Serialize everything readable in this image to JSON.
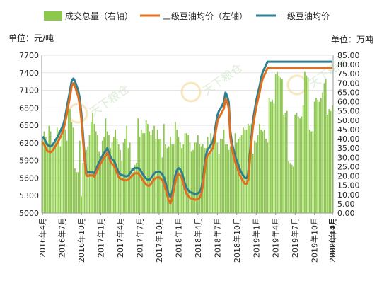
{
  "chart_data": {
    "type": "bar+line",
    "legend": {
      "position": "top",
      "items": [
        {
          "label": "成交总量（右轴）",
          "kind": "bar",
          "color": "#8cc84b"
        },
        {
          "label": "三级豆油均价（左轴）",
          "kind": "line",
          "color": "#e07020"
        },
        {
          "label": "一级豆油均价",
          "kind": "line",
          "color": "#2f7f8f"
        }
      ]
    },
    "left_axis": {
      "unit_label": "单位：元/吨",
      "min": 5000,
      "max": 7700,
      "step": 300,
      "ticks": [
        "5000",
        "5300",
        "5600",
        "5900",
        "6200",
        "6500",
        "6800",
        "7100",
        "7400",
        "7700"
      ]
    },
    "right_axis": {
      "unit_label": "单位：万吨",
      "min": 0,
      "max": 85,
      "step": 5,
      "ticks": [
        "0.00",
        "5.00",
        "10.00",
        "15.00",
        "20.00",
        "25.00",
        "30.00",
        "35.00",
        "40.00",
        "45.00",
        "50.00",
        "55.00",
        "60.00",
        "65.00",
        "70.00",
        "75.00",
        "80.00",
        "85.00"
      ]
    },
    "x_tick_labels": [
      "2016年4月",
      "2016年7月",
      "2016年10月",
      "2017年1月",
      "2017年4月",
      "2017年7月",
      "2017年10月",
      "2018年1月",
      "2018年4月",
      "2018年7月",
      "2018年10月",
      "2019年1月",
      "2019年4月",
      "2019年7月",
      "2019年10月",
      "2020年1月",
      "2020年4月",
      "2020年7月",
      "2020年10月"
    ],
    "weeks_per_month": 4,
    "volume_wan_ton": [
      40,
      44,
      41,
      36,
      47,
      44,
      37,
      37,
      39,
      46,
      44,
      36,
      47,
      45,
      45,
      39,
      60,
      56,
      49,
      46,
      24,
      22,
      22,
      39,
      9,
      27,
      35,
      34,
      36,
      42,
      49,
      54,
      48,
      44,
      42,
      33,
      30,
      39,
      41,
      51,
      44,
      42,
      35,
      38,
      41,
      45,
      40,
      37,
      34,
      28,
      38,
      40,
      47,
      35,
      38,
      24,
      22,
      26,
      27,
      51,
      41,
      45,
      43,
      43,
      50,
      48,
      44,
      42,
      45,
      47,
      40,
      45,
      40,
      40,
      30,
      48,
      37,
      35,
      36,
      41,
      37,
      37,
      49,
      45,
      41,
      38,
      35,
      37,
      43,
      43,
      42,
      38,
      33,
      34,
      38,
      38,
      42,
      37,
      36,
      37,
      35,
      35,
      41,
      32,
      43,
      38,
      38,
      43,
      38,
      32,
      40,
      40,
      45,
      37,
      37,
      34,
      36,
      39,
      35,
      43,
      38,
      40,
      41,
      42,
      46,
      45,
      45,
      48,
      47,
      48,
      32,
      39,
      38,
      42,
      48,
      45,
      44,
      45,
      40,
      38,
      62,
      60,
      61,
      59,
      75,
      76,
      74,
      73,
      72,
      53,
      54,
      55,
      28,
      27,
      26,
      25,
      53,
      54,
      52,
      51,
      52,
      58,
      76,
      74,
      73,
      45,
      44,
      44,
      60,
      62,
      61,
      60,
      62,
      65,
      70,
      72,
      53,
      56,
      55,
      58
    ],
    "grade3_price_yuan_ton": [
      6210,
      6170,
      6120,
      6060,
      6050,
      6040,
      6060,
      6100,
      6150,
      6190,
      6240,
      6300,
      6360,
      6430,
      6550,
      6700,
      6850,
      7000,
      7170,
      7220,
      7170,
      7080,
      7000,
      6850,
      6600,
      6250,
      5900,
      5660,
      5630,
      5650,
      5640,
      5650,
      5620,
      5680,
      5740,
      5800,
      5850,
      5900,
      5950,
      5980,
      6030,
      5960,
      5880,
      5840,
      5820,
      5760,
      5680,
      5620,
      5590,
      5580,
      5570,
      5560,
      5560,
      5570,
      5600,
      5630,
      5660,
      5680,
      5680,
      5680,
      5650,
      5610,
      5560,
      5520,
      5490,
      5470,
      5470,
      5500,
      5540,
      5580,
      5600,
      5610,
      5610,
      5590,
      5560,
      5500,
      5410,
      5300,
      5210,
      5170,
      5240,
      5380,
      5530,
      5630,
      5670,
      5650,
      5600,
      5500,
      5400,
      5330,
      5290,
      5260,
      5250,
      5240,
      5230,
      5230,
      5240,
      5260,
      5320,
      5450,
      5700,
      5900,
      5990,
      6020,
      6060,
      6100,
      6200,
      6400,
      6560,
      6640,
      6680,
      6730,
      6790,
      6950,
      6910,
      6800,
      6300,
      6100,
      5980,
      5870,
      5800,
      5720,
      5640,
      5590,
      5540,
      5500,
      5500,
      5560,
      5900,
      6200,
      6480,
      6650,
      6810,
      6940,
      7050,
      7200,
      7300,
      7360,
      7420,
      7480,
      7480,
      7480,
      7480,
      7480,
      7480,
      7480,
      7480,
      7480,
      7480,
      7480,
      7480,
      7480,
      7480,
      7480,
      7480,
      7480,
      7480,
      7480,
      7480,
      7480,
      7480,
      7480,
      7480,
      7480,
      7480,
      7480,
      7480,
      7480,
      7480,
      7480,
      7480,
      7480,
      7480,
      7480,
      7480,
      7480,
      7480,
      7480,
      7480,
      7480
    ],
    "grade1_price_yuan_ton": [
      6310,
      6270,
      6220,
      6170,
      6150,
      6140,
      6160,
      6200,
      6250,
      6290,
      6340,
      6400,
      6460,
      6530,
      6650,
      6800,
      6950,
      7100,
      7260,
      7300,
      7260,
      7180,
      7100,
      6960,
      6700,
      6350,
      5980,
      5720,
      5690,
      5700,
      5690,
      5700,
      5680,
      5740,
      5810,
      5870,
      5930,
      5980,
      6030,
      6060,
      6110,
      6030,
      5960,
      5920,
      5900,
      5840,
      5760,
      5700,
      5660,
      5650,
      5640,
      5630,
      5630,
      5640,
      5680,
      5720,
      5750,
      5770,
      5770,
      5770,
      5750,
      5710,
      5660,
      5620,
      5590,
      5570,
      5570,
      5600,
      5640,
      5680,
      5700,
      5710,
      5710,
      5690,
      5660,
      5610,
      5520,
      5410,
      5320,
      5280,
      5350,
      5490,
      5640,
      5730,
      5770,
      5750,
      5700,
      5600,
      5500,
      5430,
      5390,
      5360,
      5350,
      5340,
      5330,
      5330,
      5340,
      5360,
      5420,
      5550,
      5800,
      6000,
      6090,
      6120,
      6170,
      6210,
      6310,
      6510,
      6670,
      6750,
      6790,
      6840,
      6900,
      7060,
      7010,
      6900,
      6400,
      6200,
      6080,
      5970,
      5900,
      5820,
      5740,
      5690,
      5640,
      5600,
      5600,
      5660,
      6000,
      6300,
      6580,
      6760,
      6920,
      7050,
      7160,
      7310,
      7410,
      7470,
      7530,
      7590,
      7590,
      7590,
      7590,
      7590,
      7590,
      7590,
      7590,
      7590,
      7590,
      7590,
      7590,
      7590,
      7590,
      7590,
      7590,
      7590,
      7590,
      7590,
      7590,
      7590,
      7590,
      7590,
      7590,
      7590,
      7590,
      7590,
      7590,
      7590,
      7590,
      7590,
      7590,
      7590,
      7590,
      7590,
      7590,
      7590,
      7590,
      7590,
      7590,
      7590
    ],
    "watermark": "天下粮仓"
  }
}
